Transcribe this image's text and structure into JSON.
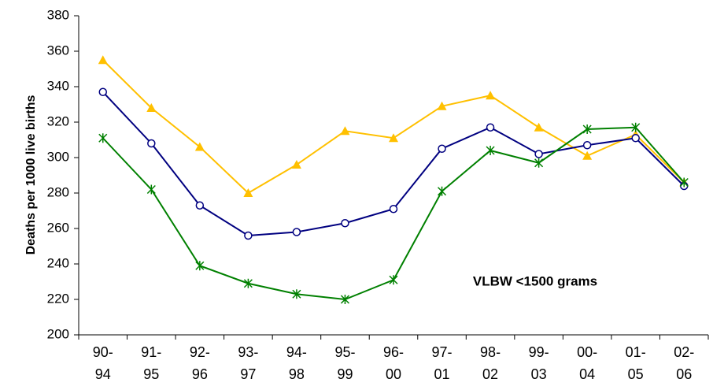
{
  "chart_data": {
    "type": "line",
    "y_label": "Deaths per 1000 live births",
    "annotation": "VLBW <1500 grams",
    "categories": [
      "90-94",
      "91-95",
      "92-96",
      "93-97",
      "94-98",
      "95-99",
      "96-00",
      "97-01",
      "98-02",
      "99-03",
      "00-04",
      "01-05",
      "02-06"
    ],
    "series": [
      {
        "color": "#FFC000",
        "marker": "triangle",
        "values": [
          355,
          328,
          306,
          280,
          296,
          315,
          311,
          329,
          335,
          317,
          301,
          313,
          286
        ]
      },
      {
        "color": "#000080",
        "marker": "circle",
        "values": [
          337,
          308,
          273,
          256,
          258,
          263,
          271,
          305,
          317,
          302,
          307,
          311,
          284
        ]
      },
      {
        "color": "#008000",
        "marker": "asterisk",
        "values": [
          311,
          282,
          239,
          229,
          223,
          220,
          231,
          281,
          304,
          297,
          316,
          317,
          286
        ]
      }
    ],
    "ylim": [
      200,
      380
    ],
    "yticks": [
      200,
      220,
      240,
      260,
      280,
      300,
      320,
      340,
      360,
      380
    ],
    "grid": false
  }
}
